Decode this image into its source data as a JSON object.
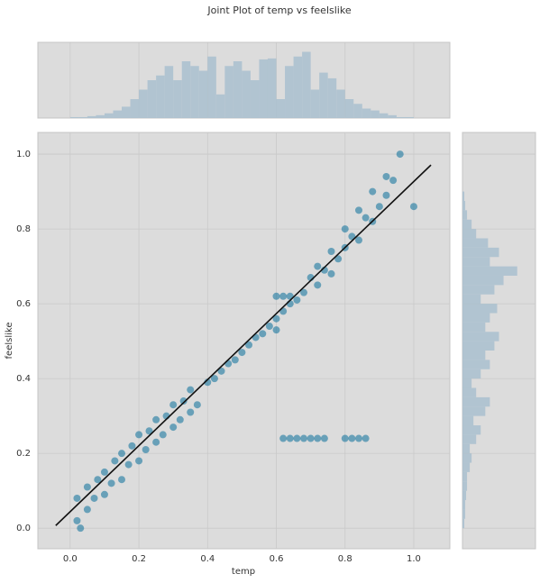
{
  "chart_data": {
    "type": "jointplot",
    "title": "Joint Plot of temp vs feelslike",
    "x_label": "temp",
    "y_label": "feelslike",
    "xlim": [
      -0.094,
      1.105
    ],
    "ylim": [
      -0.055,
      1.058
    ],
    "xticks": [
      {
        "value": 0,
        "label": "0.0"
      },
      0.2,
      0.4,
      0.6,
      0.8,
      {
        "value": 1,
        "label": "1.0"
      }
    ],
    "yticks": [
      {
        "value": 0,
        "label": "0.0"
      },
      0.2,
      0.4,
      0.6,
      0.8,
      {
        "value": 1,
        "label": "1.0"
      }
    ],
    "grid": true,
    "color": "#0a6f9b",
    "hist_color": "#a9bfcf",
    "line_color": "#111111",
    "x": [
      0.02,
      0.02,
      0.03,
      0.05,
      0.05,
      0.07,
      0.08,
      0.1,
      0.1,
      0.12,
      0.13,
      0.15,
      0.15,
      0.17,
      0.18,
      0.2,
      0.2,
      0.22,
      0.23,
      0.25,
      0.25,
      0.27,
      0.28,
      0.3,
      0.3,
      0.32,
      0.33,
      0.35,
      0.35,
      0.37,
      0.4,
      0.42,
      0.44,
      0.46,
      0.48,
      0.5,
      0.52,
      0.54,
      0.56,
      0.58,
      0.6,
      0.6,
      0.62,
      0.62,
      0.64,
      0.64,
      0.66,
      0.6,
      0.68,
      0.7,
      0.72,
      0.72,
      0.74,
      0.76,
      0.76,
      0.78,
      0.8,
      0.8,
      0.82,
      0.84,
      0.84,
      0.86,
      0.88,
      0.88,
      0.9,
      0.92,
      0.92,
      0.94,
      0.96,
      1.0,
      0.62,
      0.64,
      0.66,
      0.68,
      0.7,
      0.72,
      0.74,
      0.8,
      0.82,
      0.84,
      0.86
    ],
    "y": [
      0.02,
      0.08,
      0.0,
      0.05,
      0.11,
      0.08,
      0.13,
      0.09,
      0.15,
      0.12,
      0.18,
      0.13,
      0.2,
      0.17,
      0.22,
      0.18,
      0.25,
      0.21,
      0.26,
      0.23,
      0.29,
      0.25,
      0.3,
      0.27,
      0.33,
      0.29,
      0.34,
      0.31,
      0.37,
      0.33,
      0.39,
      0.4,
      0.42,
      0.44,
      0.45,
      0.47,
      0.49,
      0.51,
      0.52,
      0.54,
      0.56,
      0.62,
      0.58,
      0.62,
      0.6,
      0.62,
      0.61,
      0.53,
      0.63,
      0.67,
      0.65,
      0.7,
      0.69,
      0.68,
      0.74,
      0.72,
      0.75,
      0.8,
      0.78,
      0.77,
      0.85,
      0.83,
      0.82,
      0.9,
      0.86,
      0.89,
      0.94,
      0.93,
      1.0,
      0.86,
      0.24,
      0.24,
      0.24,
      0.24,
      0.24,
      0.24,
      0.24,
      0.24,
      0.24,
      0.24,
      0.24
    ],
    "regression": {
      "x": [
        -0.042,
        1.05
      ],
      "y": [
        0.007,
        0.971
      ]
    },
    "x_hist": {
      "bins": [
        0,
        0.025,
        0.05,
        0.075,
        0.1,
        0.125,
        0.15,
        0.175,
        0.2,
        0.225,
        0.25,
        0.275,
        0.3,
        0.325,
        0.35,
        0.375,
        0.4,
        0.425,
        0.45,
        0.475,
        0.5,
        0.525,
        0.55,
        0.575,
        0.6,
        0.625,
        0.65,
        0.675,
        0.7,
        0.725,
        0.75,
        0.775,
        0.8,
        0.825,
        0.85,
        0.875,
        0.9,
        0.925,
        0.95,
        0.975,
        1.0
      ],
      "counts": [
        1,
        1,
        2,
        3,
        5,
        8,
        12,
        20,
        30,
        40,
        45,
        55,
        40,
        60,
        55,
        50,
        65,
        25,
        55,
        60,
        50,
        40,
        62,
        63,
        20,
        55,
        65,
        70,
        30,
        48,
        42,
        30,
        20,
        15,
        10,
        8,
        5,
        3,
        1,
        1
      ],
      "lim": [
        0,
        80
      ]
    },
    "y_hist": {
      "bins": [
        0,
        0.025,
        0.05,
        0.075,
        0.1,
        0.125,
        0.15,
        0.175,
        0.2,
        0.225,
        0.25,
        0.275,
        0.3,
        0.325,
        0.35,
        0.375,
        0.4,
        0.425,
        0.45,
        0.475,
        0.5,
        0.525,
        0.55,
        0.575,
        0.6,
        0.625,
        0.65,
        0.675,
        0.7,
        0.725,
        0.75,
        0.775,
        0.8,
        0.825,
        0.85,
        0.875,
        0.9
      ],
      "counts": [
        2,
        3,
        3,
        4,
        5,
        5,
        8,
        10,
        8,
        15,
        20,
        12,
        25,
        30,
        15,
        10,
        20,
        30,
        25,
        35,
        40,
        25,
        30,
        38,
        20,
        35,
        45,
        60,
        30,
        40,
        28,
        15,
        10,
        5,
        3,
        2
      ],
      "lim": [
        0,
        80
      ]
    }
  }
}
